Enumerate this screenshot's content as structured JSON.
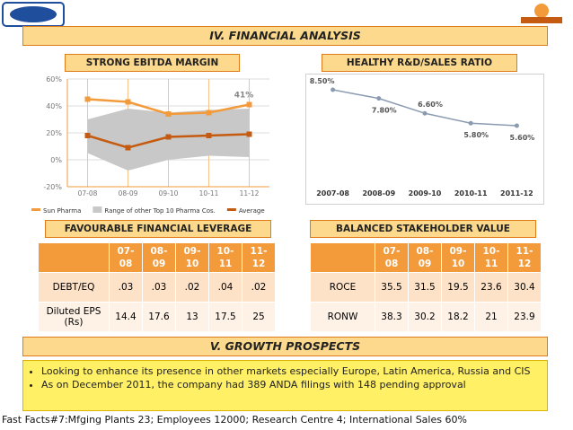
{
  "header": {
    "title": "IV. FINANCIAL ANALYSIS"
  },
  "chart_data": [
    {
      "type": "line",
      "title": "STRONG EBITDA MARGIN",
      "categories": [
        "07-08",
        "08-09",
        "09-10",
        "10-11",
        "11-12"
      ],
      "series": [
        {
          "name": "Sun Pharma",
          "color": "#f39a3b",
          "values": [
            45,
            43,
            34,
            35,
            41
          ],
          "value_labels": [
            null,
            null,
            null,
            null,
            "41%"
          ]
        },
        {
          "name": "Range of other Top 10 Pharma Cos.",
          "type": "band",
          "color": "#c8c8c8",
          "values": [
            30,
            38,
            35,
            37,
            38
          ],
          "low": [
            5,
            -8,
            0,
            3,
            2
          ]
        },
        {
          "name": "Average",
          "color": "#c55a11",
          "values": [
            18,
            9,
            17,
            18,
            19
          ]
        }
      ],
      "ylim": [
        -20,
        60
      ],
      "yticks": [
        {
          "value": -20,
          "label": "-20%"
        },
        {
          "value": 0,
          "label": "0%"
        },
        {
          "value": 20,
          "label": "20%"
        },
        {
          "value": 40,
          "label": "40%"
        },
        {
          "value": 60,
          "label": "60%"
        }
      ],
      "grid": true
    },
    {
      "type": "line",
      "title": "HEALTHY R&D/SALES RATIO",
      "categories": [
        "2007-08",
        "2008-09",
        "2009-10",
        "2010-11",
        "2011-12"
      ],
      "values": [
        8.5,
        7.8,
        6.6,
        5.8,
        5.6
      ],
      "value_labels": [
        "8.50%",
        "7.80%",
        "6.60%",
        "5.80%",
        "5.60%"
      ],
      "color": "#8a9bb0"
    }
  ],
  "tables": [
    {
      "title": "FAVOURABLE FINANCIAL LEVERAGE",
      "columns": [
        "07-08",
        "08-09",
        "09-10",
        "10-11",
        "11-12"
      ],
      "rows": [
        {
          "label": "DEBT/EQ",
          "values": [
            ".03",
            ".03",
            ".02",
            ".04",
            ".02"
          ]
        },
        {
          "label": "Diluted EPS (Rs)",
          "values": [
            14.4,
            17.6,
            13,
            17.5,
            25
          ]
        }
      ]
    },
    {
      "title": "BALANCED STAKEHOLDER VALUE",
      "columns": [
        "07-08",
        "08-09",
        "09-10",
        "10-11",
        "11-12"
      ],
      "rows": [
        {
          "label": "ROCE",
          "values": [
            35.5,
            31.5,
            19.5,
            23.6,
            30.4
          ]
        },
        {
          "label": "RONW",
          "values": [
            38.3,
            30.2,
            18.2,
            21,
            23.9
          ]
        }
      ]
    }
  ],
  "growth": {
    "title": "V. GROWTH PROSPECTS",
    "bullets": [
      "Looking to enhance its presence in other markets especially Europe, Latin America, Russia and CIS",
      "As on December 2011, the company had 389 ANDA filings with 148 pending approval"
    ]
  },
  "footer": "Fast Facts#7:Mfging Plants 23; Employees 12000; Research Centre 4; International Sales 60%"
}
